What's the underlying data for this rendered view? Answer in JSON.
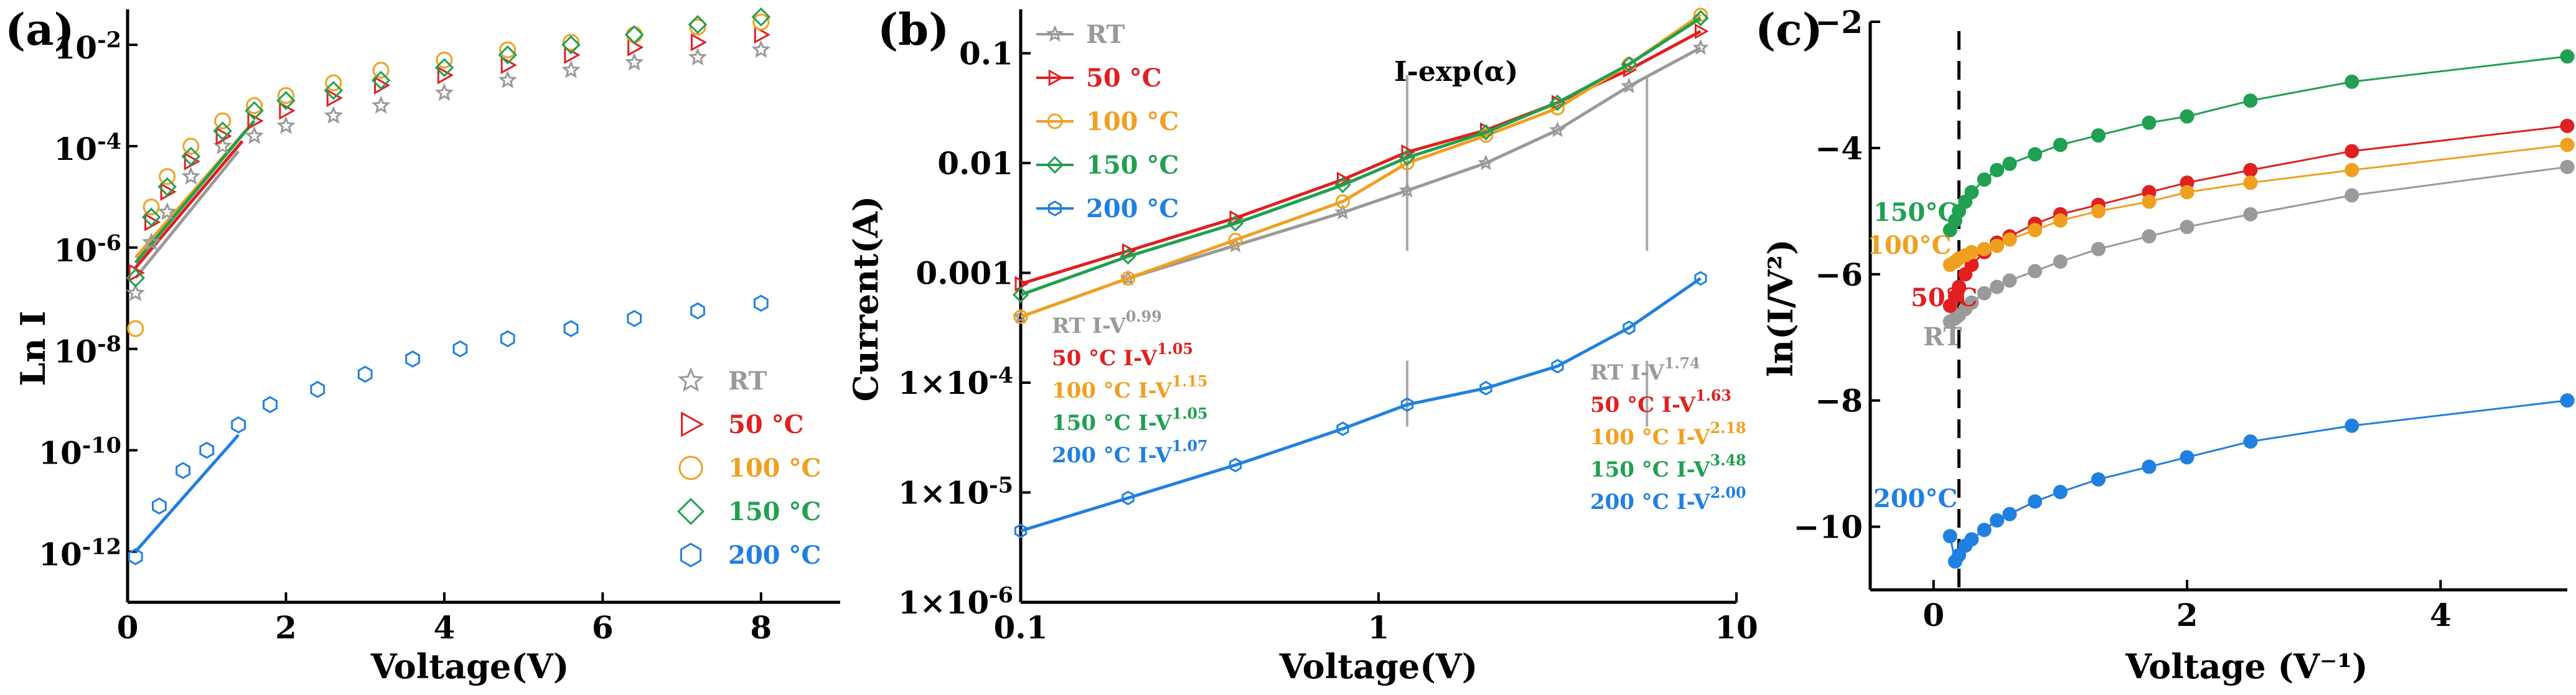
{
  "colors": {
    "RT": "#9a9a9a",
    "c50": "#e02020",
    "c100": "#f0a020",
    "c150": "#20a050",
    "c200": "#2080e0"
  },
  "chart_data": [
    {
      "id": "a",
      "type": "scatter",
      "panel_label": "(a)",
      "xlabel": "Voltage(V)",
      "ylabel": "Ln I",
      "xlim": [
        0,
        9
      ],
      "ylim": [
        -13,
        -1.3
      ],
      "yscale": "log10",
      "x_ticks": [
        0,
        2,
        4,
        6,
        8
      ],
      "x_tick_labels": [
        "0",
        "2",
        "4",
        "6",
        "8"
      ],
      "y_tick_labels": [
        {
          "base": "10",
          "exp": "-2",
          "v": -2
        },
        {
          "base": "10",
          "exp": "-4",
          "v": -4
        },
        {
          "base": "10",
          "exp": "-6",
          "v": -6
        },
        {
          "base": "10",
          "exp": "-8",
          "v": -8
        },
        {
          "base": "10",
          "exp": "-10",
          "v": -10
        },
        {
          "base": "10",
          "exp": "-12",
          "v": -12
        }
      ],
      "legend": [
        {
          "label": "RT",
          "marker": "star",
          "color": "#9a9a9a"
        },
        {
          "label": "50 °C",
          "marker": "triangle",
          "color": "#e02020"
        },
        {
          "label": "100 °C",
          "marker": "circle",
          "color": "#f0a020"
        },
        {
          "label": "150 °C",
          "marker": "diamond",
          "color": "#20a050"
        },
        {
          "label": "200 °C",
          "marker": "hexagon",
          "color": "#2080e0"
        }
      ],
      "series": [
        {
          "name": "RT",
          "color": "#9a9a9a",
          "marker": "star",
          "x": [
            0.1,
            0.3,
            0.5,
            0.8,
            1.2,
            1.6,
            2.0,
            2.6,
            3.2,
            4.0,
            4.8,
            5.6,
            6.4,
            7.2,
            8.0
          ],
          "y": [
            -6.9,
            -5.9,
            -5.3,
            -4.6,
            -4.0,
            -3.8,
            -3.6,
            -3.4,
            -3.2,
            -2.95,
            -2.7,
            -2.5,
            -2.35,
            -2.25,
            -2.1
          ]
        },
        {
          "name": "50 °C",
          "color": "#e02020",
          "marker": "triangle",
          "x": [
            0.1,
            0.3,
            0.5,
            0.8,
            1.2,
            1.6,
            2.0,
            2.6,
            3.2,
            4.0,
            4.8,
            5.6,
            6.4,
            7.2,
            8.0
          ],
          "y": [
            -6.5,
            -5.5,
            -4.9,
            -4.3,
            -3.8,
            -3.5,
            -3.3,
            -3.05,
            -2.8,
            -2.6,
            -2.4,
            -2.2,
            -2.05,
            -1.95,
            -1.8
          ]
        },
        {
          "name": "100 °C",
          "color": "#f0a020",
          "marker": "circle",
          "x": [
            0.1,
            0.3,
            0.5,
            0.8,
            1.2,
            1.6,
            2.0,
            2.6,
            3.2,
            4.0,
            4.8,
            5.6,
            6.4,
            7.2,
            8.0
          ],
          "y": [
            -7.6,
            -5.2,
            -4.6,
            -4.0,
            -3.5,
            -3.2,
            -3.0,
            -2.75,
            -2.5,
            -2.3,
            -2.1,
            -1.95,
            -1.8,
            -1.65,
            -1.55
          ]
        },
        {
          "name": "150 °C",
          "color": "#20a050",
          "marker": "diamond",
          "x": [
            0.1,
            0.3,
            0.5,
            0.8,
            1.2,
            1.6,
            2.0,
            2.6,
            3.2,
            4.0,
            4.8,
            5.6,
            6.4,
            7.2,
            8.0
          ],
          "y": [
            -6.6,
            -5.4,
            -4.8,
            -4.2,
            -3.7,
            -3.3,
            -3.1,
            -2.9,
            -2.7,
            -2.45,
            -2.2,
            -2.0,
            -1.8,
            -1.6,
            -1.45
          ]
        },
        {
          "name": "200 °C",
          "color": "#2080e0",
          "marker": "hexagon",
          "x": [
            0.1,
            0.4,
            0.7,
            1.0,
            1.4,
            1.8,
            2.4,
            3.0,
            3.6,
            4.2,
            4.8,
            5.6,
            6.4,
            7.2,
            8.0
          ],
          "y": [
            -12.1,
            -11.1,
            -10.4,
            -10.0,
            -9.5,
            -9.1,
            -8.8,
            -8.5,
            -8.2,
            -8.0,
            -7.8,
            -7.6,
            -7.4,
            -7.25,
            -7.1
          ]
        }
      ],
      "fits": [
        {
          "color": "#e02020",
          "x": [
            0.1,
            1.45
          ],
          "y": [
            -6.4,
            -3.9
          ]
        },
        {
          "color": "#f0a020",
          "x": [
            0.1,
            1.6
          ],
          "y": [
            -6.2,
            -3.5
          ]
        },
        {
          "color": "#20a050",
          "x": [
            0.1,
            1.6
          ],
          "y": [
            -6.3,
            -3.5
          ]
        },
        {
          "color": "#9a9a9a",
          "x": [
            0.1,
            1.4
          ],
          "y": [
            -6.6,
            -4.1
          ]
        },
        {
          "color": "#2080e0",
          "x": [
            0.1,
            1.4
          ],
          "y": [
            -12.0,
            -9.7
          ]
        }
      ]
    },
    {
      "id": "b",
      "type": "scatter",
      "panel_label": "(b)",
      "xlabel": "Voltage(V)",
      "ylabel": "Current(A)",
      "xscale": "log10",
      "yscale": "log10",
      "xlim": [
        -1,
        1
      ],
      "ylim": [
        -6,
        -0.6
      ],
      "x_tick_labels": [
        {
          "v": -1,
          "t": "0.1"
        },
        {
          "v": 0,
          "t": "1"
        },
        {
          "v": 1,
          "t": "10"
        }
      ],
      "y_tick_labels": [
        {
          "v": -1,
          "t": "0.1",
          "sup": ""
        },
        {
          "v": -2,
          "t": "0.01",
          "sup": ""
        },
        {
          "v": -3,
          "t": "0.001",
          "sup": ""
        },
        {
          "v": -4,
          "t": "1×10",
          "sup": "-4"
        },
        {
          "v": -5,
          "t": "1×10",
          "sup": "-5"
        },
        {
          "v": -6,
          "t": "1×10",
          "sup": "-6"
        }
      ],
      "legend": [
        {
          "label": "RT",
          "marker": "star",
          "color": "#9a9a9a"
        },
        {
          "label": "50 °C",
          "marker": "triangle",
          "color": "#e02020"
        },
        {
          "label": "100 °C",
          "marker": "circle",
          "color": "#f0a020"
        },
        {
          "label": "150 °C",
          "marker": "diamond",
          "color": "#20a050"
        },
        {
          "label": "200 °C",
          "marker": "hexagon",
          "color": "#2080e0"
        }
      ],
      "region_label": "I-exp(α)",
      "dividers_x_log": [
        0.08,
        0.75
      ],
      "series": [
        {
          "name": "RT",
          "color": "#9a9a9a",
          "x": [
            -1,
            -0.7,
            -0.4,
            -0.1,
            0.08,
            0.3,
            0.5,
            0.7,
            0.9
          ],
          "y": [
            -3.4,
            -3.05,
            -2.75,
            -2.45,
            -2.25,
            -2.0,
            -1.7,
            -1.3,
            -0.95
          ]
        },
        {
          "name": "50 °C",
          "color": "#e02020",
          "x": [
            -1,
            -0.7,
            -0.4,
            -0.1,
            0.08,
            0.3,
            0.5,
            0.7,
            0.9
          ],
          "y": [
            -3.1,
            -2.8,
            -2.5,
            -2.15,
            -1.9,
            -1.7,
            -1.45,
            -1.15,
            -0.8
          ]
        },
        {
          "name": "100 °C",
          "color": "#f0a020",
          "x": [
            -1,
            -0.7,
            -0.4,
            -0.1,
            0.08,
            0.3,
            0.5,
            0.7,
            0.9
          ],
          "y": [
            -3.4,
            -3.05,
            -2.7,
            -2.35,
            -2.0,
            -1.75,
            -1.5,
            -1.1,
            -0.65
          ]
        },
        {
          "name": "150 °C",
          "color": "#20a050",
          "x": [
            -1,
            -0.7,
            -0.4,
            -0.1,
            0.08,
            0.3,
            0.5,
            0.7,
            0.9
          ],
          "y": [
            -3.2,
            -2.85,
            -2.55,
            -2.2,
            -1.95,
            -1.72,
            -1.45,
            -1.1,
            -0.68
          ]
        },
        {
          "name": "200 °C",
          "color": "#2080e0",
          "x": [
            -1,
            -0.7,
            -0.4,
            -0.1,
            0.08,
            0.3,
            0.5,
            0.7,
            0.9
          ],
          "y": [
            -5.35,
            -5.05,
            -4.75,
            -4.42,
            -4.2,
            -4.05,
            -3.85,
            -3.5,
            -3.05
          ]
        }
      ],
      "annotations_left": [
        {
          "text": "RT I-V",
          "sup": "0.99",
          "color": "#9a9a9a"
        },
        {
          "text": "50 °C I-V",
          "sup": "1.05",
          "color": "#e02020"
        },
        {
          "text": "100 °C I-V",
          "sup": "1.15",
          "color": "#f0a020"
        },
        {
          "text": "150 °C I-V",
          "sup": "1.05",
          "color": "#20a050"
        },
        {
          "text": "200 °C I-V",
          "sup": "1.07",
          "color": "#2080e0"
        }
      ],
      "annotations_right": [
        {
          "text": "RT I-V",
          "sup": "1.74",
          "color": "#9a9a9a"
        },
        {
          "text": "50 °C I-V",
          "sup": "1.63",
          "color": "#e02020"
        },
        {
          "text": "100 °C I-V",
          "sup": "2.18",
          "color": "#f0a020"
        },
        {
          "text": "150 °C I-V",
          "sup": "3.48",
          "color": "#20a050"
        },
        {
          "text": "200 °C I-V",
          "sup": "2.00",
          "color": "#2080e0"
        }
      ]
    },
    {
      "id": "c",
      "type": "line",
      "panel_label": "(c)",
      "xlabel": "Voltage (V⁻¹)",
      "ylabel": "ln(I/V²)",
      "xlim": [
        -0.5,
        5
      ],
      "ylim": [
        -11,
        -2
      ],
      "x_ticks": [
        0,
        2,
        4
      ],
      "x_tick_labels": [
        "0",
        "2",
        "4"
      ],
      "y_ticks": [
        -2,
        -4,
        -6,
        -8,
        -10
      ],
      "y_tick_labels": [
        "−2",
        "−4",
        "−6",
        "−8",
        "−10"
      ],
      "vline_x": 0.2,
      "series": [
        {
          "name": "RT",
          "label": "RT",
          "color": "#9a9a9a",
          "x": [
            0.13,
            0.17,
            0.2,
            0.25,
            0.3,
            0.4,
            0.5,
            0.6,
            0.8,
            1.0,
            1.3,
            1.7,
            2.0,
            2.5,
            3.3,
            5.0
          ],
          "y": [
            -6.75,
            -6.7,
            -6.65,
            -6.55,
            -6.45,
            -6.3,
            -6.2,
            -6.1,
            -5.95,
            -5.8,
            -5.6,
            -5.4,
            -5.25,
            -5.05,
            -4.75,
            -4.3
          ]
        },
        {
          "name": "50°C",
          "label": "50°C",
          "color": "#e02020",
          "x": [
            0.13,
            0.17,
            0.2,
            0.25,
            0.3,
            0.4,
            0.5,
            0.6,
            0.8,
            1.0,
            1.3,
            1.7,
            2.0,
            2.5,
            3.3,
            5.0
          ],
          "y": [
            -6.5,
            -6.35,
            -6.2,
            -6.0,
            -5.85,
            -5.65,
            -5.5,
            -5.4,
            -5.2,
            -5.05,
            -4.9,
            -4.7,
            -4.55,
            -4.35,
            -4.05,
            -3.65
          ]
        },
        {
          "name": "100°C",
          "label": "100°C",
          "color": "#f0a020",
          "x": [
            0.13,
            0.17,
            0.2,
            0.25,
            0.3,
            0.4,
            0.5,
            0.6,
            0.8,
            1.0,
            1.3,
            1.7,
            2.0,
            2.5,
            3.3,
            5.0
          ],
          "y": [
            -5.85,
            -5.8,
            -5.75,
            -5.7,
            -5.65,
            -5.6,
            -5.55,
            -5.45,
            -5.3,
            -5.15,
            -5.0,
            -4.85,
            -4.7,
            -4.55,
            -4.35,
            -3.95
          ]
        },
        {
          "name": "150°C",
          "label": "150°C",
          "color": "#20a050",
          "x": [
            0.13,
            0.17,
            0.2,
            0.25,
            0.3,
            0.4,
            0.5,
            0.6,
            0.8,
            1.0,
            1.3,
            1.7,
            2.0,
            2.5,
            3.3,
            5.0
          ],
          "y": [
            -5.3,
            -5.15,
            -5.0,
            -4.85,
            -4.7,
            -4.5,
            -4.35,
            -4.25,
            -4.1,
            -3.95,
            -3.8,
            -3.6,
            -3.5,
            -3.25,
            -2.95,
            -2.55
          ]
        },
        {
          "name": "200°C",
          "label": "200°C",
          "color": "#2080e0",
          "x": [
            0.13,
            0.17,
            0.2,
            0.25,
            0.3,
            0.4,
            0.5,
            0.6,
            0.8,
            1.0,
            1.3,
            1.7,
            2.0,
            2.5,
            3.3,
            5.0
          ],
          "y": [
            -10.15,
            -10.55,
            -10.45,
            -10.3,
            -10.2,
            -10.05,
            -9.9,
            -9.8,
            -9.6,
            -9.45,
            -9.25,
            -9.05,
            -8.9,
            -8.65,
            -8.4,
            -8.0
          ]
        }
      ]
    }
  ]
}
